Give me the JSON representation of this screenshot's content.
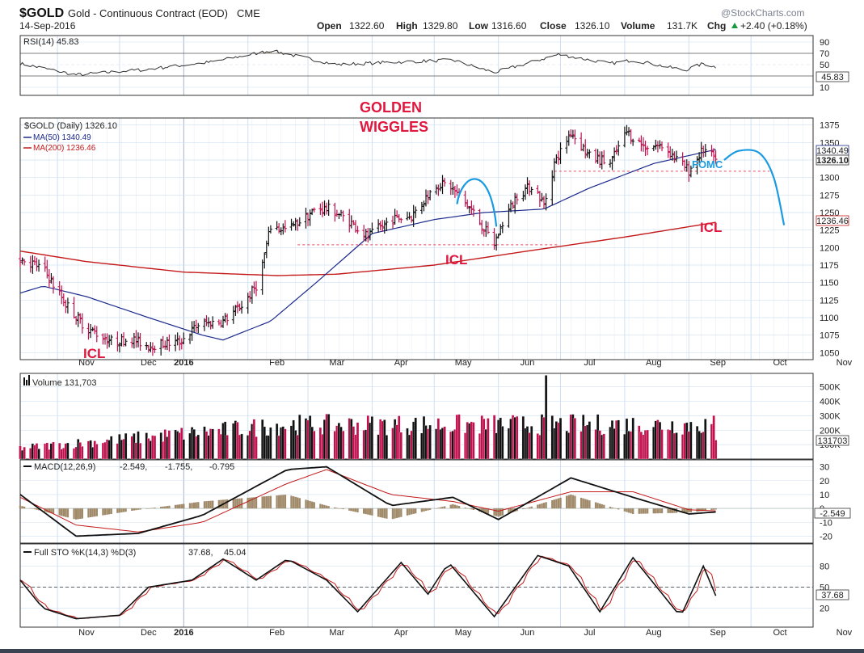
{
  "header": {
    "symbol": "$GOLD",
    "name": "Gold - Continuous Contract (EOD)",
    "exchange": "CME",
    "date": "14-Sep-2016",
    "open_label": "Open",
    "open": "1322.60",
    "high_label": "High",
    "high": "1329.80",
    "low_label": "Low",
    "low": "1316.60",
    "close_label": "Close",
    "close": "1326.10",
    "volume_label": "Volume",
    "volume": "131.7K",
    "chg_label": "Chg",
    "chg": "+2.40 (+0.18%)",
    "watermark": "@StockCharts.com",
    "chg_arrow": "up-arrow-icon"
  },
  "months": [
    "Nov",
    "Dec",
    "2016",
    "Feb",
    "Mar",
    "Apr",
    "May",
    "Jun",
    "Jul",
    "Aug",
    "Sep",
    "Oct",
    "Nov"
  ],
  "colors": {
    "up_bar": "#111111",
    "down_bar": "#c0114e",
    "ma50": "#1c2a8c",
    "ma200": "#c41a1a",
    "annotation_red": "#e0173e",
    "projection_blue": "#1a9ae0",
    "grid": "#cfe0f2"
  },
  "rsi": {
    "label": "RSI(14) 45.83",
    "ticks": [
      "90",
      "70",
      "50",
      "30",
      "10"
    ],
    "value_box": "45.83"
  },
  "price": {
    "legend_title": "$GOLD (Daily) 1326.10",
    "ma50_label": "MA(50) 1340.49",
    "ma200_label": "MA(200) 1236.46",
    "ticks": [
      "1375",
      "1350",
      "1325",
      "1300",
      "1275",
      "1250",
      "1225",
      "1200",
      "1175",
      "1150",
      "1125",
      "1100",
      "1075",
      "1050"
    ],
    "close_box": "1326.10",
    "ma50_box": "1340.49",
    "ma200_box": "1236.46"
  },
  "annotations": {
    "golden_line1": "GOLDEN",
    "golden_line2": "WIGGLES",
    "icl_1": "ICL",
    "icl_2": "ICL",
    "icl_3": "ICL",
    "fomc": "FOMC"
  },
  "volume": {
    "label": "Volume 131,703",
    "ticks": [
      "500K",
      "400K",
      "300K",
      "200K",
      "100K"
    ],
    "value_box": "131703"
  },
  "macd": {
    "label_prefix": "MACD(12,26,9)",
    "v1": "-2.549,",
    "v2": "-1.755,",
    "v3": "-0.795",
    "ticks": [
      "30",
      "20",
      "10",
      "0",
      "-10",
      "-20"
    ],
    "value_box": "-2.549"
  },
  "sto": {
    "label_prefix": "Full STO %K(14,3) %D(3)",
    "k": "37.68,",
    "d": "45.04",
    "ticks": [
      "80",
      "50",
      "20"
    ],
    "value_box": "37.68"
  },
  "chart_data": {
    "type": "bar",
    "title": "$GOLD Gold - Continuous Contract (EOD) CME",
    "x_range": [
      "2015-10-14",
      "2016-10-31"
    ],
    "ylim": [
      1040,
      1385
    ],
    "price_anchors": [
      {
        "date": "2015-10-14",
        "close": 1185
      },
      {
        "date": "2015-10-25",
        "close": 1170
      },
      {
        "date": "2015-11-05",
        "close": 1120
      },
      {
        "date": "2015-11-15",
        "close": 1085
      },
      {
        "date": "2015-11-28",
        "close": 1065
      },
      {
        "date": "2015-12-06",
        "close": 1070
      },
      {
        "date": "2015-12-15",
        "close": 1060
      },
      {
        "date": "2015-12-30",
        "close": 1065
      },
      {
        "date": "2016-01-08",
        "close": 1090
      },
      {
        "date": "2016-01-20",
        "close": 1095
      },
      {
        "date": "2016-01-30",
        "close": 1120
      },
      {
        "date": "2016-02-06",
        "close": 1150
      },
      {
        "date": "2016-02-12",
        "close": 1230
      },
      {
        "date": "2016-02-20",
        "close": 1225
      },
      {
        "date": "2016-03-05",
        "close": 1255
      },
      {
        "date": "2016-03-12",
        "close": 1255
      },
      {
        "date": "2016-03-20",
        "close": 1240
      },
      {
        "date": "2016-03-30",
        "close": 1215
      },
      {
        "date": "2016-04-10",
        "close": 1240
      },
      {
        "date": "2016-04-20",
        "close": 1245
      },
      {
        "date": "2016-05-02",
        "close": 1290
      },
      {
        "date": "2016-05-08",
        "close": 1290
      },
      {
        "date": "2016-05-20",
        "close": 1250
      },
      {
        "date": "2016-05-30",
        "close": 1205
      },
      {
        "date": "2016-06-03",
        "close": 1235
      },
      {
        "date": "2016-06-10",
        "close": 1275
      },
      {
        "date": "2016-06-18",
        "close": 1290
      },
      {
        "date": "2016-06-23",
        "close": 1260
      },
      {
        "date": "2016-06-28",
        "close": 1320
      },
      {
        "date": "2016-07-06",
        "close": 1365
      },
      {
        "date": "2016-07-15",
        "close": 1330
      },
      {
        "date": "2016-07-25",
        "close": 1320
      },
      {
        "date": "2016-08-02",
        "close": 1365
      },
      {
        "date": "2016-08-10",
        "close": 1345
      },
      {
        "date": "2016-08-20",
        "close": 1345
      },
      {
        "date": "2016-08-28",
        "close": 1320
      },
      {
        "date": "2016-09-01",
        "close": 1310
      },
      {
        "date": "2016-09-08",
        "close": 1340
      },
      {
        "date": "2016-09-14",
        "close": 1326
      }
    ],
    "ma50_anchors": [
      {
        "date": "2015-10-14",
        "value": 1135
      },
      {
        "date": "2015-10-25",
        "value": 1145
      },
      {
        "date": "2015-11-15",
        "value": 1130
      },
      {
        "date": "2015-12-15",
        "value": 1100
      },
      {
        "date": "2016-01-10",
        "value": 1075
      },
      {
        "date": "2016-01-20",
        "value": 1068
      },
      {
        "date": "2016-02-12",
        "value": 1095
      },
      {
        "date": "2016-03-05",
        "value": 1150
      },
      {
        "date": "2016-04-01",
        "value": 1220
      },
      {
        "date": "2016-05-01",
        "value": 1240
      },
      {
        "date": "2016-05-25",
        "value": 1250
      },
      {
        "date": "2016-06-23",
        "value": 1255
      },
      {
        "date": "2016-07-15",
        "value": 1285
      },
      {
        "date": "2016-08-15",
        "value": 1320
      },
      {
        "date": "2016-09-14",
        "value": 1340
      }
    ],
    "ma200_anchors": [
      {
        "date": "2015-10-14",
        "value": 1195
      },
      {
        "date": "2015-11-15",
        "value": 1180
      },
      {
        "date": "2016-01-01",
        "value": 1165
      },
      {
        "date": "2016-02-15",
        "value": 1160
      },
      {
        "date": "2016-03-15",
        "value": 1162
      },
      {
        "date": "2016-05-01",
        "value": 1175
      },
      {
        "date": "2016-06-15",
        "value": 1195
      },
      {
        "date": "2016-08-01",
        "value": 1215
      },
      {
        "date": "2016-09-14",
        "value": 1236
      }
    ],
    "projection_curve": [
      {
        "date": "2016-09-18",
        "value": 1325
      },
      {
        "date": "2016-09-25",
        "value": 1338
      },
      {
        "date": "2016-10-05",
        "value": 1335
      },
      {
        "date": "2016-10-12",
        "value": 1300
      },
      {
        "date": "2016-10-17",
        "value": 1232
      }
    ],
    "support_lines": [
      {
        "from": "2016-02-25",
        "to": "2016-06-30",
        "value": 1204
      },
      {
        "from": "2016-06-28",
        "to": "2016-10-10",
        "value": 1309
      }
    ],
    "rsi_anchors": [
      {
        "date": "2015-10-14",
        "value": 52
      },
      {
        "date": "2015-11-10",
        "value": 32
      },
      {
        "date": "2015-12-15",
        "value": 42
      },
      {
        "date": "2016-01-15",
        "value": 55
      },
      {
        "date": "2016-02-12",
        "value": 75
      },
      {
        "date": "2016-03-15",
        "value": 50
      },
      {
        "date": "2016-04-15",
        "value": 55
      },
      {
        "date": "2016-05-10",
        "value": 58
      },
      {
        "date": "2016-05-30",
        "value": 36
      },
      {
        "date": "2016-06-30",
        "value": 68
      },
      {
        "date": "2016-07-25",
        "value": 52
      },
      {
        "date": "2016-08-05",
        "value": 58
      },
      {
        "date": "2016-08-30",
        "value": 40
      },
      {
        "date": "2016-09-08",
        "value": 52
      },
      {
        "date": "2016-09-14",
        "value": 45.83
      }
    ],
    "volume_k": {
      "min": 50,
      "max": 260,
      "spike_date": "2016-06-24",
      "spike_value": 580,
      "last": 131.7,
      "ylim": [
        0,
        560
      ]
    },
    "macd_anchors": [
      {
        "date": "2015-10-14",
        "macd": 10,
        "signal": 8
      },
      {
        "date": "2015-11-10",
        "macd": -20,
        "signal": -12
      },
      {
        "date": "2015-12-10",
        "macd": -18,
        "signal": -17
      },
      {
        "date": "2016-01-10",
        "macd": -5,
        "signal": -10
      },
      {
        "date": "2016-02-20",
        "macd": 28,
        "signal": 18
      },
      {
        "date": "2016-03-10",
        "macd": 30,
        "signal": 28
      },
      {
        "date": "2016-04-10",
        "macd": 2,
        "signal": 10
      },
      {
        "date": "2016-05-10",
        "macd": 8,
        "signal": 5
      },
      {
        "date": "2016-06-01",
        "macd": -8,
        "signal": -2
      },
      {
        "date": "2016-07-06",
        "macd": 22,
        "signal": 12
      },
      {
        "date": "2016-08-05",
        "macd": 8,
        "signal": 12
      },
      {
        "date": "2016-09-01",
        "macd": -4,
        "signal": -1
      },
      {
        "date": "2016-09-14",
        "macd": -2.549,
        "signal": -1.755
      }
    ],
    "macd_ylim": [
      -25,
      35
    ],
    "sto_anchors": [
      {
        "date": "2015-10-14",
        "k": 60
      },
      {
        "date": "2015-10-25",
        "k": 20
      },
      {
        "date": "2015-11-10",
        "k": 5
      },
      {
        "date": "2015-12-01",
        "k": 10
      },
      {
        "date": "2015-12-15",
        "k": 50
      },
      {
        "date": "2016-01-05",
        "k": 60
      },
      {
        "date": "2016-01-20",
        "k": 90
      },
      {
        "date": "2016-02-05",
        "k": 60
      },
      {
        "date": "2016-02-20",
        "k": 90
      },
      {
        "date": "2016-03-10",
        "k": 60
      },
      {
        "date": "2016-03-25",
        "k": 15
      },
      {
        "date": "2016-04-15",
        "k": 85
      },
      {
        "date": "2016-04-28",
        "k": 40
      },
      {
        "date": "2016-05-08",
        "k": 85
      },
      {
        "date": "2016-05-30",
        "k": 8
      },
      {
        "date": "2016-06-20",
        "k": 95
      },
      {
        "date": "2016-07-05",
        "k": 80
      },
      {
        "date": "2016-07-20",
        "k": 15
      },
      {
        "date": "2016-08-05",
        "k": 92
      },
      {
        "date": "2016-08-28",
        "k": 8
      },
      {
        "date": "2016-09-08",
        "k": 80
      },
      {
        "date": "2016-09-14",
        "k": 37.68
      }
    ],
    "sto_ylim": [
      0,
      100
    ]
  }
}
